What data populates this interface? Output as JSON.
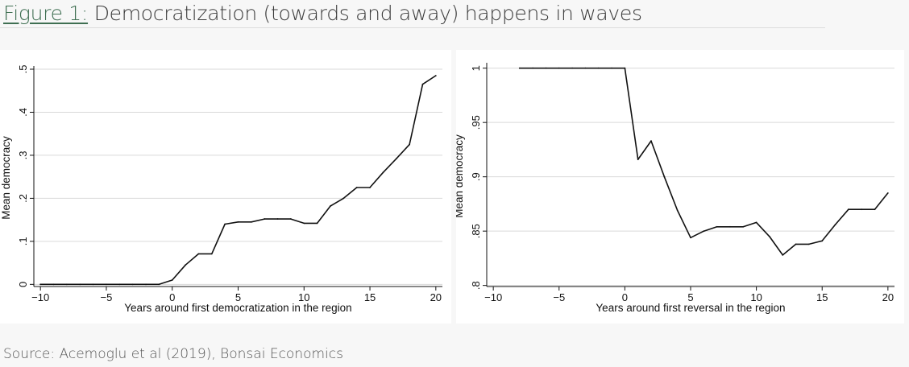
{
  "header": {
    "figure_label": "Figure 1:",
    "figure_title": "Democratization (towards and away) happens in waves"
  },
  "source": "Source: Acemoglu et al (2019), Bonsai Economics",
  "colors": {
    "line": "#111111",
    "grid": "#d9d9d9",
    "panel": "#ffffff",
    "label_accent": "#3f6f52"
  },
  "chart_data": [
    {
      "type": "line",
      "xlabel": "Years around first democratization in the region",
      "ylabel": "Mean democracy",
      "xlim": [
        -10.5,
        20.5
      ],
      "ylim": [
        -0.005,
        0.5
      ],
      "xticks": [
        -10,
        -5,
        0,
        5,
        10,
        15,
        20
      ],
      "xtick_labels": [
        "−10",
        "−5",
        "0",
        "5",
        "10",
        "15",
        "20"
      ],
      "yticks": [
        0,
        0.1,
        0.2,
        0.3,
        0.4,
        0.5
      ],
      "ytick_labels": [
        "0",
        ".1",
        ".2",
        ".3",
        ".4",
        ".5"
      ],
      "grid": true,
      "series": [
        {
          "x": [
            -10,
            -9,
            -8,
            -7,
            -6,
            -5,
            -4,
            -3,
            -2,
            -1,
            0,
            1,
            2,
            3,
            4,
            5,
            6,
            7,
            8,
            9,
            10,
            11,
            12,
            13,
            14,
            15,
            16,
            17,
            18,
            19,
            20
          ],
          "y": [
            0,
            0,
            0,
            0,
            0,
            0,
            0,
            0,
            0,
            0,
            0.01,
            0.045,
            0.071,
            0.071,
            0.14,
            0.145,
            0.145,
            0.152,
            0.152,
            0.152,
            0.142,
            0.142,
            0.182,
            0.2,
            0.225,
            0.225,
            0.26,
            0.292,
            0.325,
            0.465,
            0.485
          ]
        }
      ]
    },
    {
      "type": "line",
      "xlabel": "Years around first reversal in the region",
      "ylabel": "Mean democracy",
      "xlim": [
        -10.5,
        20.5
      ],
      "ylim": [
        0.799,
        1.002
      ],
      "xticks": [
        -10,
        -5,
        0,
        5,
        10,
        15,
        20
      ],
      "xtick_labels": [
        "−10",
        "−5",
        "0",
        "5",
        "10",
        "15",
        "20"
      ],
      "yticks": [
        0.8,
        0.85,
        0.9,
        0.95,
        1
      ],
      "ytick_labels": [
        ".8",
        ".85",
        ".9",
        ".95",
        "1"
      ],
      "grid": true,
      "series": [
        {
          "x": [
            -8,
            -7,
            -6,
            -5,
            -4,
            -3,
            -2,
            -1,
            0,
            1,
            2,
            3,
            4,
            5,
            6,
            7,
            8,
            9,
            10,
            11,
            12,
            13,
            14,
            15,
            16,
            17,
            18,
            19,
            20
          ],
          "y": [
            1,
            1,
            1,
            1,
            1,
            1,
            1,
            1,
            1,
            0.916,
            0.933,
            0.9,
            0.869,
            0.844,
            0.85,
            0.854,
            0.854,
            0.854,
            0.858,
            0.845,
            0.828,
            0.838,
            0.838,
            0.841,
            0.856,
            0.87,
            0.87,
            0.87,
            0.885
          ]
        }
      ]
    }
  ]
}
